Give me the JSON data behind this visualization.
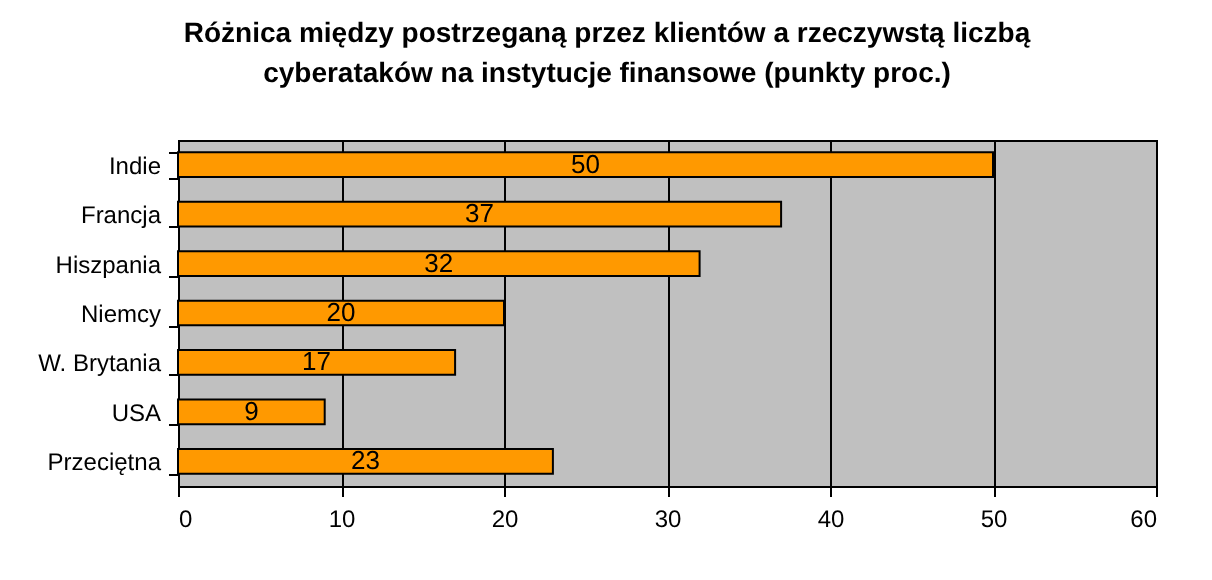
{
  "chart_data": {
    "type": "bar",
    "orientation": "horizontal",
    "title": [
      "Różnica między postrzeganą  przez klientów a rzeczywstą liczbą",
      "cyberataków na instytucje finansowe (punkty proc.)"
    ],
    "categories": [
      "Indie",
      "Francja",
      "Hiszpania",
      "Niemcy",
      "W. Brytania",
      "USA",
      "Przeciętna"
    ],
    "values": [
      50,
      37,
      32,
      20,
      17,
      9,
      23
    ],
    "color": "#ff9900",
    "xlim": [
      0,
      60
    ],
    "xticks": [
      0,
      10,
      20,
      30,
      40,
      50,
      60
    ],
    "grid": "x",
    "data_labels": true
  }
}
